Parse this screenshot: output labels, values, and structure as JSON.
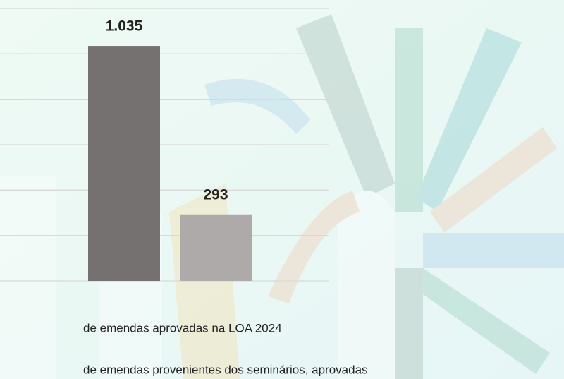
{
  "chart_data": {
    "type": "bar",
    "categories": [
      null
    ],
    "series": [
      {
        "name": "de emendas aprovadas na LOA 2024",
        "color": "#767171",
        "values": [
          1035
        ],
        "value_labels": [
          "1.035"
        ]
      },
      {
        "name": "de emendas provenientes dos seminários, aprovadas",
        "color": "#aeaaaa",
        "values": [
          293
        ]
      }
    ],
    "ylim": [
      0,
      1200
    ],
    "yticks": [
      0,
      200,
      400,
      600,
      800,
      1000,
      1200
    ],
    "grid": true
  }
}
